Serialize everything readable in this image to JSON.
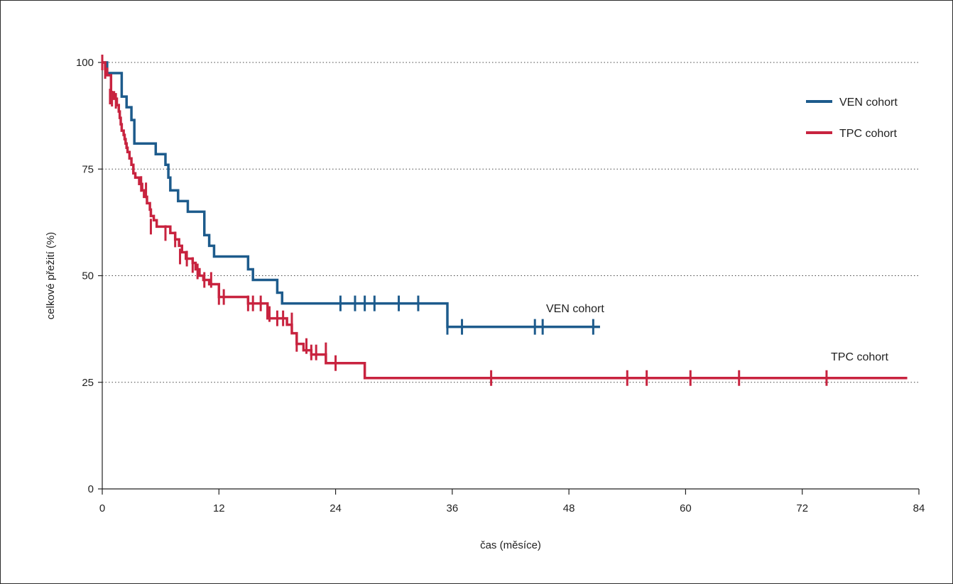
{
  "chart_data": {
    "type": "line",
    "subtype": "kaplan-meier step",
    "xlabel": "čas (měsíce)",
    "ylabel": "celkové přežití (%)",
    "xlim": [
      0,
      84
    ],
    "ylim": [
      0,
      100
    ],
    "xticks": [
      0,
      12,
      24,
      36,
      48,
      60,
      72,
      84
    ],
    "yticks": [
      0,
      25,
      50,
      75,
      100
    ],
    "grid": "horizontal dotted at 25, 50, 75, 100",
    "legend": {
      "position": "top-right",
      "entries": [
        "VEN cohort",
        "TPC cohort"
      ]
    },
    "annotations": {
      "ven": "VEN cohort",
      "tpc": "TPC cohort"
    },
    "series": [
      {
        "name": "VEN cohort",
        "color": "#1d5b8c",
        "steps": [
          [
            0,
            100
          ],
          [
            0.5,
            97.5
          ],
          [
            2,
            92
          ],
          [
            2.5,
            89.5
          ],
          [
            3,
            86.5
          ],
          [
            3.3,
            81
          ],
          [
            5.5,
            78.5
          ],
          [
            6.5,
            76
          ],
          [
            6.8,
            73
          ],
          [
            7,
            70
          ],
          [
            7.8,
            67.5
          ],
          [
            8.8,
            65
          ],
          [
            10.5,
            59.5
          ],
          [
            11,
            57
          ],
          [
            11.5,
            54.5
          ],
          [
            15,
            51.5
          ],
          [
            15.5,
            49
          ],
          [
            18,
            46
          ],
          [
            18.5,
            43.5
          ],
          [
            35.5,
            38
          ]
        ],
        "end": 51.2,
        "censored": [
          [
            24.5,
            43.5
          ],
          [
            26,
            43.5
          ],
          [
            27,
            43.5
          ],
          [
            28,
            43.5
          ],
          [
            30.5,
            43.5
          ],
          [
            32.5,
            43.5
          ],
          [
            35.5,
            38
          ],
          [
            37,
            38
          ],
          [
            44.5,
            38
          ],
          [
            45.3,
            38
          ],
          [
            50.5,
            38
          ]
        ]
      },
      {
        "name": "TPC cohort",
        "color": "#c8233f",
        "steps": [
          [
            0,
            100
          ],
          [
            0.3,
            98.5
          ],
          [
            0.5,
            97
          ],
          [
            0.9,
            93
          ],
          [
            1.2,
            91.5
          ],
          [
            1.5,
            90
          ],
          [
            1.7,
            88.5
          ],
          [
            1.8,
            87
          ],
          [
            1.9,
            85.5
          ],
          [
            2,
            84
          ],
          [
            2.2,
            83
          ],
          [
            2.3,
            82
          ],
          [
            2.4,
            81
          ],
          [
            2.5,
            80
          ],
          [
            2.6,
            79
          ],
          [
            2.8,
            77.5
          ],
          [
            3,
            76
          ],
          [
            3.2,
            74
          ],
          [
            3.4,
            73
          ],
          [
            3.8,
            71.5
          ],
          [
            4.1,
            70
          ],
          [
            4.3,
            68.5
          ],
          [
            4.6,
            67
          ],
          [
            4.9,
            65.5
          ],
          [
            5,
            64
          ],
          [
            5.3,
            63
          ],
          [
            5.6,
            61.5
          ],
          [
            7,
            60
          ],
          [
            7.5,
            58.5
          ],
          [
            7.9,
            57
          ],
          [
            8.2,
            55.5
          ],
          [
            8.6,
            54
          ],
          [
            9.3,
            53
          ],
          [
            9.6,
            51.5
          ],
          [
            10,
            50
          ],
          [
            10.4,
            49
          ],
          [
            11,
            48
          ],
          [
            12,
            45
          ],
          [
            15,
            43.5
          ],
          [
            17,
            40
          ],
          [
            19,
            38.5
          ],
          [
            19.5,
            36.5
          ],
          [
            20,
            34
          ],
          [
            20.7,
            32.5
          ],
          [
            21.5,
            31.5
          ],
          [
            23,
            29.5
          ],
          [
            27,
            26
          ]
        ],
        "end": 82.8,
        "censored": [
          [
            0,
            100
          ],
          [
            0.3,
            98
          ],
          [
            0.8,
            92
          ],
          [
            1,
            91.5
          ],
          [
            1.4,
            91
          ],
          [
            4,
            71.5
          ],
          [
            4.5,
            70
          ],
          [
            5,
            61.5
          ],
          [
            6.5,
            60
          ],
          [
            7.5,
            58.5
          ],
          [
            8,
            54.5
          ],
          [
            8.7,
            54
          ],
          [
            9.3,
            52.5
          ],
          [
            9.8,
            51
          ],
          [
            10.5,
            49
          ],
          [
            11.2,
            49
          ],
          [
            12,
            45
          ],
          [
            12.5,
            45
          ],
          [
            15,
            43.5
          ],
          [
            15.5,
            43.5
          ],
          [
            16.3,
            43.5
          ],
          [
            17.2,
            41
          ],
          [
            18,
            40
          ],
          [
            18.6,
            40
          ],
          [
            19.5,
            39.5
          ],
          [
            20,
            34
          ],
          [
            21,
            33.5
          ],
          [
            21.5,
            32
          ],
          [
            22,
            32
          ],
          [
            23,
            32.5
          ],
          [
            24,
            29.5
          ],
          [
            40,
            26
          ],
          [
            54,
            26
          ],
          [
            56,
            26
          ],
          [
            60.5,
            26
          ],
          [
            65.5,
            26
          ],
          [
            74.5,
            26
          ]
        ]
      }
    ]
  }
}
